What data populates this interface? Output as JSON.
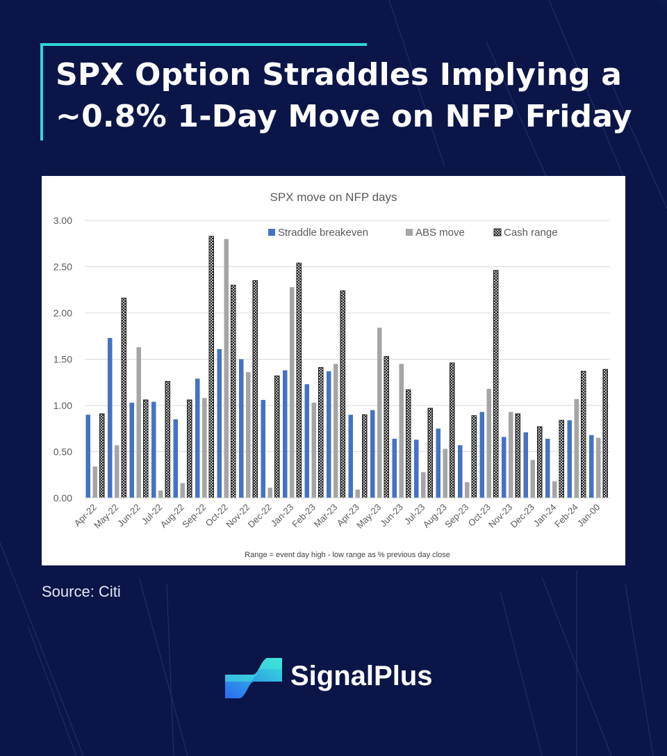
{
  "title_lines": [
    "SPX Option Straddles Implying a",
    "~0.8% 1-Day Move on NFP Friday"
  ],
  "source": "Source: Citi",
  "brand": "SignalPlus",
  "colors": {
    "background": "#0b1547",
    "accent": "#2fd6d6",
    "straddle": "#4472c4",
    "abs_move": "#a5a5a5",
    "cash_range": "#1a1a1a"
  },
  "chart_data": {
    "type": "bar",
    "title": "SPX move on NFP days",
    "footnote": "Range = event day high - low range as % previous day close",
    "ylim": [
      0,
      3
    ],
    "yticks": [
      0,
      0.5,
      1.0,
      1.5,
      2.0,
      2.5,
      3.0
    ],
    "ytick_labels": [
      "0.00",
      "0.50",
      "1.00",
      "1.50",
      "2.00",
      "2.50",
      "3.00"
    ],
    "legend_position": "top-right",
    "categories": [
      "Apr-22",
      "May-22",
      "Jun-22",
      "Jul-22",
      "Aug-22",
      "Sep-22",
      "Oct-22",
      "Nov-22",
      "Dec-22",
      "Jan-23",
      "Feb-23",
      "Mar-23",
      "Apr-23",
      "May-23",
      "Jun-23",
      "Jul-23",
      "Aug-23",
      "Sep-23",
      "Oct-23",
      "Nov-23",
      "Dec-23",
      "Jan-24",
      "Feb-24",
      "Jan-00"
    ],
    "series": [
      {
        "name": "Straddle breakeven",
        "values": [
          0.9,
          1.73,
          1.03,
          1.04,
          0.85,
          1.29,
          1.61,
          1.5,
          1.06,
          1.38,
          1.23,
          1.37,
          0.9,
          0.95,
          0.64,
          0.63,
          0.75,
          0.57,
          0.93,
          0.66,
          0.71,
          0.64,
          0.84,
          0.68
        ]
      },
      {
        "name": "ABS move",
        "values": [
          0.34,
          0.57,
          1.63,
          0.08,
          0.16,
          1.08,
          2.8,
          1.36,
          0.11,
          2.28,
          1.03,
          1.45,
          0.09,
          1.84,
          1.45,
          0.28,
          0.53,
          0.17,
          1.18,
          0.93,
          0.41,
          0.18,
          1.07,
          0.65
        ]
      },
      {
        "name": "Cash range",
        "values": [
          0.91,
          2.16,
          1.06,
          1.26,
          1.06,
          2.83,
          2.3,
          2.35,
          1.32,
          2.54,
          1.41,
          2.24,
          0.9,
          1.53,
          1.17,
          0.97,
          1.46,
          0.89,
          2.46,
          0.91,
          0.77,
          0.84,
          1.37,
          1.39
        ]
      }
    ]
  }
}
